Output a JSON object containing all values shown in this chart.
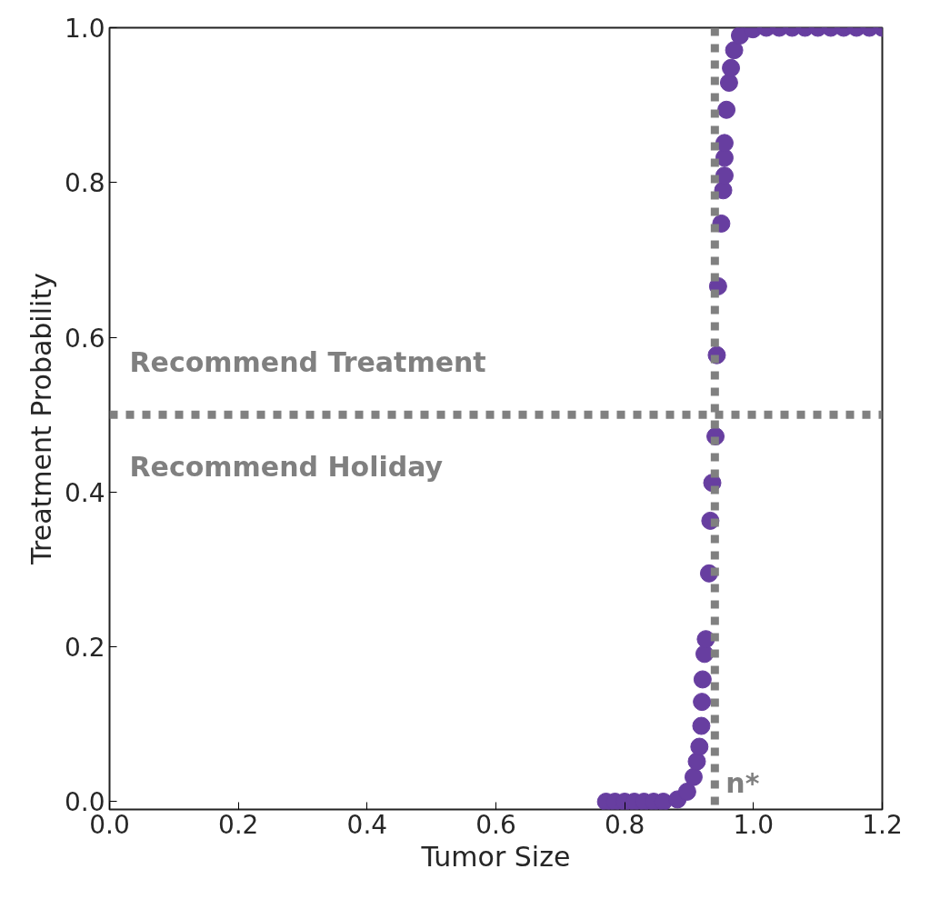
{
  "chart_data": {
    "type": "scatter",
    "xlabel": "Tumor Size",
    "ylabel": "Treatment Probability",
    "xlim": [
      0,
      1.2
    ],
    "ylim": [
      -0.01,
      1.0
    ],
    "xticks": [
      {
        "value": 0,
        "label": "0.0"
      },
      0.2,
      0.4,
      0.6,
      0.8,
      {
        "value": 1,
        "label": "1.0"
      },
      1.2
    ],
    "yticks": [
      {
        "value": 0,
        "label": "0.0"
      },
      0.2,
      0.4,
      0.6,
      0.8,
      {
        "value": 1,
        "label": "1.0"
      }
    ],
    "grid": false,
    "marker": "circle",
    "series": [
      {
        "color": "#673ea0",
        "x": [
          0.771,
          0.785,
          0.8,
          0.815,
          0.83,
          0.845,
          0.86,
          0.872,
          0.882,
          0.897,
          0.907,
          0.912,
          0.916,
          0.919,
          0.92,
          0.921,
          0.924,
          0.926,
          0.931,
          0.933,
          0.936,
          0.941,
          0.943,
          0.945,
          0.95,
          0.953,
          0.955,
          0.955,
          0.955,
          0.958,
          0.962,
          0.965,
          0.97,
          0.979,
          0.999,
          1.02,
          1.04,
          1.06,
          1.08,
          1.1,
          1.12,
          1.14,
          1.16,
          1.18,
          1.2
        ],
        "values": [
          0.0,
          0.0,
          0.0,
          0.0,
          0.0,
          0.0,
          0.0,
          null,
          0.003,
          0.013,
          0.032,
          0.052,
          0.071,
          0.098,
          0.129,
          0.158,
          0.191,
          0.21,
          0.295,
          0.363,
          0.412,
          0.472,
          0.577,
          0.666,
          0.747,
          0.79,
          0.809,
          0.832,
          0.851,
          0.894,
          0.929,
          0.948,
          0.971,
          0.99,
          0.998,
          1.0,
          1.0,
          1.0,
          1.0,
          1.0,
          1.0,
          1.0,
          1.0,
          1.0,
          1.0
        ]
      }
    ],
    "ref_lines": [
      {
        "axis": "y",
        "value": 0.5,
        "color": "#808080",
        "line_style": "dotted"
      },
      {
        "axis": "x",
        "value": 0.94,
        "color": "#808080",
        "line_style": "dotted",
        "label": "n*"
      }
    ],
    "annotations": [
      "Recommend Treatment",
      "Recommend Holiday"
    ]
  }
}
